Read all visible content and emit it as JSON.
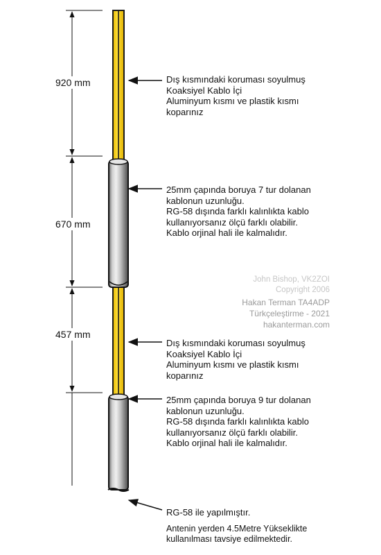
{
  "dimensions": [
    "920 mm",
    "670 mm",
    "457 mm"
  ],
  "notes": [
    {
      "lines": [
        "Dış kısmındaki koruması soyulmuş",
        "Koaksiyel Kablo İçi",
        "Aluminyum kısmı ve plastik kısmı",
        "koparınız"
      ]
    },
    {
      "lines": [
        "25mm çapında boruya 7 tur dolanan",
        "kablonun uzunluğu.",
        "RG-58 dışında farklı kalınlıkta kablo",
        "kullanıyorsanız ölçü farklı olabilir.",
        "Kablo orjinal hali ile kalmalıdır."
      ]
    },
    {
      "lines": [
        "Dış kısmındaki koruması soyulmuş",
        "Koaksiyel Kablo İçi",
        "Aluminyum kısmı ve plastik kısmı",
        "koparınız"
      ]
    },
    {
      "lines": [
        "25mm çapında boruya 9 tur dolanan",
        "kablonun uzunluğu.",
        "RG-58 dışında farklı kalınlıkta kablo",
        "kullanıyorsanız ölçü farklı olabilir.",
        "Kablo orjinal hali ile kalmalıdır."
      ]
    }
  ],
  "bottom_note": {
    "title": "RG-58 ile yapılmıştır.",
    "lines": [
      "Antenin yerden 4.5Metre Yükseklikte",
      "kullanılması tavsiye edilmektedir."
    ]
  },
  "credits": {
    "author": "John Bishop, VK2ZOI",
    "copyright": "Copyright 2006",
    "translator": "Hakan Terman TA4ADP",
    "translation": "Türkçeleştirme - 2021",
    "website": "hakanterman.com"
  },
  "colors": {
    "conductor": "#f4cf0e",
    "conductor_edge": "#1a1a1a",
    "cable_light": "#f0f0f0",
    "cable_dark": "#4a4a4a",
    "credit_light": "#c6c6c6",
    "credit_dark": "#9a9a9a"
  }
}
